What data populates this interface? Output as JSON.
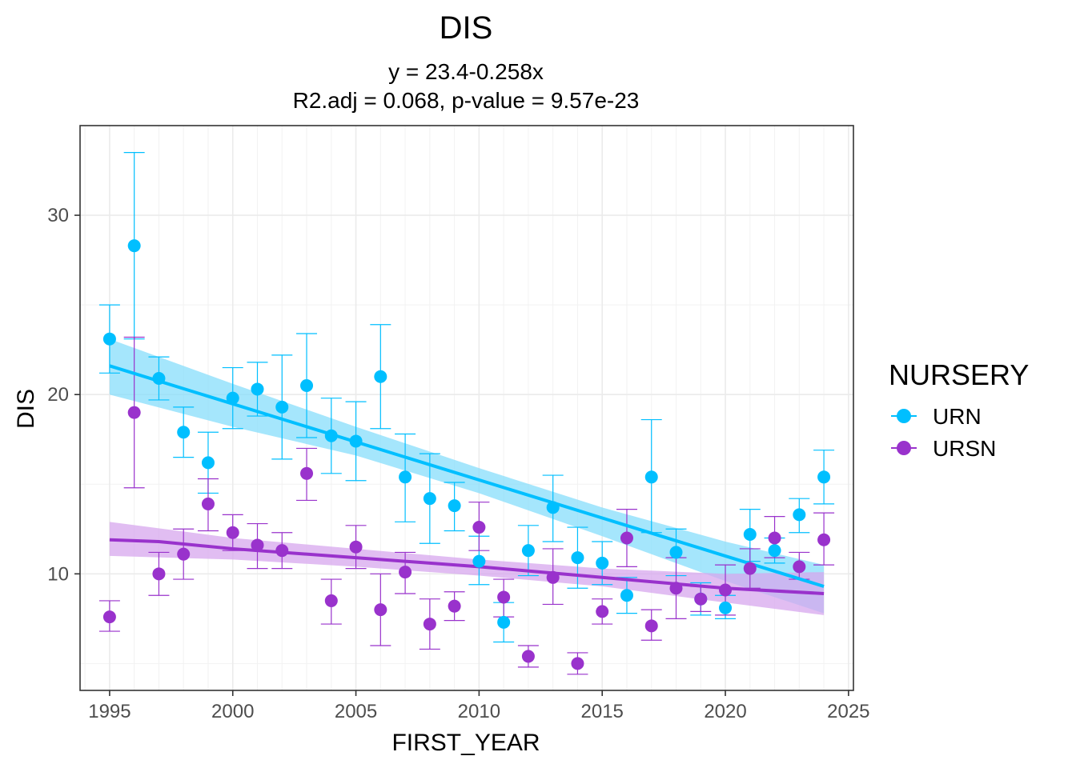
{
  "chart_data": {
    "type": "scatter",
    "title": "DIS",
    "subtitle_lines": [
      "y = 23.4-0.258x",
      "R2.adj = 0.068, p-value = 9.57e-23"
    ],
    "xlabel": "FIRST_YEAR",
    "ylabel": "DIS",
    "xlim": [
      1993.8,
      2025.2
    ],
    "ylim": [
      3.5,
      35
    ],
    "x_ticks": [
      1995,
      2000,
      2005,
      2010,
      2015,
      2020,
      2025
    ],
    "y_ticks": [
      10,
      20,
      30
    ],
    "grid": true,
    "legend": {
      "title": "NURSERY",
      "position": "right"
    },
    "series": [
      {
        "name": "URN",
        "color": "#00BFFF",
        "band_color": "#87DDFB",
        "points": [
          {
            "x": 1995,
            "y": 23.1,
            "lo": 21.2,
            "hi": 25.0
          },
          {
            "x": 1996,
            "y": 28.3,
            "lo": 23.1,
            "hi": 33.5
          },
          {
            "x": 1997,
            "y": 20.9,
            "lo": 19.7,
            "hi": 22.1
          },
          {
            "x": 1998,
            "y": 17.9,
            "lo": 16.5,
            "hi": 19.3
          },
          {
            "x": 1999,
            "y": 16.2,
            "lo": 14.5,
            "hi": 17.9
          },
          {
            "x": 2000,
            "y": 19.8,
            "lo": 18.1,
            "hi": 21.5
          },
          {
            "x": 2001,
            "y": 20.3,
            "lo": 18.8,
            "hi": 21.8
          },
          {
            "x": 2002,
            "y": 19.3,
            "lo": 16.4,
            "hi": 22.2
          },
          {
            "x": 2003,
            "y": 20.5,
            "lo": 17.6,
            "hi": 23.4
          },
          {
            "x": 2004,
            "y": 17.7,
            "lo": 15.6,
            "hi": 19.8
          },
          {
            "x": 2005,
            "y": 17.4,
            "lo": 15.2,
            "hi": 19.6
          },
          {
            "x": 2006,
            "y": 21.0,
            "lo": 18.1,
            "hi": 23.9
          },
          {
            "x": 2007,
            "y": 15.4,
            "lo": 12.9,
            "hi": 17.8
          },
          {
            "x": 2008,
            "y": 14.2,
            "lo": 11.7,
            "hi": 16.7
          },
          {
            "x": 2009,
            "y": 13.8,
            "lo": 12.4,
            "hi": 15.1
          },
          {
            "x": 2010,
            "y": 10.7,
            "lo": 9.4,
            "hi": 12.1
          },
          {
            "x": 2011,
            "y": 7.3,
            "lo": 6.2,
            "hi": 8.4
          },
          {
            "x": 2012,
            "y": 11.3,
            "lo": 9.9,
            "hi": 12.7
          },
          {
            "x": 2013,
            "y": 13.7,
            "lo": 11.8,
            "hi": 15.5
          },
          {
            "x": 2014,
            "y": 10.9,
            "lo": 9.2,
            "hi": 12.6
          },
          {
            "x": 2015,
            "y": 10.6,
            "lo": 9.4,
            "hi": 11.8
          },
          {
            "x": 2016,
            "y": 8.8,
            "lo": 7.8,
            "hi": 9.8
          },
          {
            "x": 2017,
            "y": 15.4,
            "lo": 12.3,
            "hi": 18.6
          },
          {
            "x": 2018,
            "y": 11.2,
            "lo": 9.9,
            "hi": 12.5
          },
          {
            "x": 2019,
            "y": 8.6,
            "lo": 7.7,
            "hi": 9.5
          },
          {
            "x": 2020,
            "y": 8.1,
            "lo": 7.5,
            "hi": 8.8
          },
          {
            "x": 2021,
            "y": 12.2,
            "lo": 10.7,
            "hi": 13.6
          },
          {
            "x": 2022,
            "y": 11.3,
            "lo": 10.6,
            "hi": 12.0
          },
          {
            "x": 2023,
            "y": 13.3,
            "lo": 12.3,
            "hi": 14.2
          },
          {
            "x": 2024,
            "y": 15.4,
            "lo": 13.9,
            "hi": 16.9
          }
        ],
        "trend": {
          "x0": 1995,
          "y0": 21.6,
          "x1": 2024,
          "y1": 9.3
        },
        "band": {
          "upper": [
            [
              1995,
              23.1
            ],
            [
              2000,
              20.6
            ],
            [
              2005,
              18.2
            ],
            [
              2010,
              15.9
            ],
            [
              2015,
              13.7
            ],
            [
              2020,
              11.8
            ],
            [
              2024,
              10.5
            ]
          ],
          "lower": [
            [
              1995,
              20.0
            ],
            [
              2000,
              18.2
            ],
            [
              2005,
              16.6
            ],
            [
              2010,
              14.5
            ],
            [
              2015,
              12.1
            ],
            [
              2020,
              9.6
            ],
            [
              2024,
              7.8
            ]
          ]
        }
      },
      {
        "name": "URSN",
        "color": "#9932CC",
        "band_color": "#D7A7EE",
        "points": [
          {
            "x": 1995,
            "y": 7.6,
            "lo": 6.8,
            "hi": 8.5
          },
          {
            "x": 1996,
            "y": 19.0,
            "lo": 14.8,
            "hi": 23.2
          },
          {
            "x": 1997,
            "y": 10.0,
            "lo": 8.8,
            "hi": 11.2
          },
          {
            "x": 1998,
            "y": 11.1,
            "lo": 9.7,
            "hi": 12.5
          },
          {
            "x": 1999,
            "y": 13.9,
            "lo": 12.4,
            "hi": 15.3
          },
          {
            "x": 2000,
            "y": 12.3,
            "lo": 11.3,
            "hi": 13.3
          },
          {
            "x": 2001,
            "y": 11.6,
            "lo": 10.3,
            "hi": 12.8
          },
          {
            "x": 2002,
            "y": 11.3,
            "lo": 10.3,
            "hi": 12.3
          },
          {
            "x": 2003,
            "y": 15.6,
            "lo": 14.1,
            "hi": 17.0
          },
          {
            "x": 2004,
            "y": 8.5,
            "lo": 7.2,
            "hi": 9.7
          },
          {
            "x": 2005,
            "y": 11.5,
            "lo": 10.3,
            "hi": 12.7
          },
          {
            "x": 2006,
            "y": 8.0,
            "lo": 6.0,
            "hi": 10.0
          },
          {
            "x": 2007,
            "y": 10.1,
            "lo": 8.9,
            "hi": 11.2
          },
          {
            "x": 2008,
            "y": 7.2,
            "lo": 5.8,
            "hi": 8.6
          },
          {
            "x": 2009,
            "y": 8.2,
            "lo": 7.4,
            "hi": 9.0
          },
          {
            "x": 2010,
            "y": 12.6,
            "lo": 11.3,
            "hi": 14.0
          },
          {
            "x": 2011,
            "y": 8.7,
            "lo": 7.6,
            "hi": 9.7
          },
          {
            "x": 2012,
            "y": 5.4,
            "lo": 4.8,
            "hi": 6.0
          },
          {
            "x": 2013,
            "y": 9.8,
            "lo": 8.3,
            "hi": 11.4
          },
          {
            "x": 2014,
            "y": 5.0,
            "lo": 4.4,
            "hi": 5.6
          },
          {
            "x": 2015,
            "y": 7.9,
            "lo": 7.2,
            "hi": 8.6
          },
          {
            "x": 2016,
            "y": 12.0,
            "lo": 10.4,
            "hi": 13.6
          },
          {
            "x": 2017,
            "y": 7.1,
            "lo": 6.3,
            "hi": 8.0
          },
          {
            "x": 2018,
            "y": 9.2,
            "lo": 7.5,
            "hi": 10.9
          },
          {
            "x": 2019,
            "y": 8.6,
            "lo": 7.9,
            "hi": 9.3
          },
          {
            "x": 2020,
            "y": 9.1,
            "lo": 7.7,
            "hi": 10.5
          },
          {
            "x": 2021,
            "y": 10.3,
            "lo": 9.2,
            "hi": 11.4
          },
          {
            "x": 2022,
            "y": 12.0,
            "lo": 10.9,
            "hi": 13.2
          },
          {
            "x": 2023,
            "y": 10.4,
            "lo": 9.7,
            "hi": 11.2
          },
          {
            "x": 2024,
            "y": 11.9,
            "lo": 10.5,
            "hi": 13.4
          }
        ],
        "trend_points": [
          [
            1995,
            11.9
          ],
          [
            1997,
            11.8
          ],
          [
            2000,
            11.4
          ],
          [
            2005,
            10.9
          ],
          [
            2010,
            10.4
          ],
          [
            2015,
            9.8
          ],
          [
            2020,
            9.2
          ],
          [
            2024,
            8.9
          ]
        ],
        "band": {
          "upper": [
            [
              1995,
              12.9
            ],
            [
              2000,
              12.0
            ],
            [
              2005,
              11.4
            ],
            [
              2010,
              10.8
            ],
            [
              2015,
              10.3
            ],
            [
              2020,
              10.0
            ],
            [
              2024,
              10.1
            ]
          ],
          "lower": [
            [
              1995,
              11.0
            ],
            [
              2000,
              10.8
            ],
            [
              2005,
              10.4
            ],
            [
              2010,
              9.9
            ],
            [
              2015,
              9.3
            ],
            [
              2020,
              8.4
            ],
            [
              2024,
              7.7
            ]
          ]
        }
      }
    ]
  }
}
